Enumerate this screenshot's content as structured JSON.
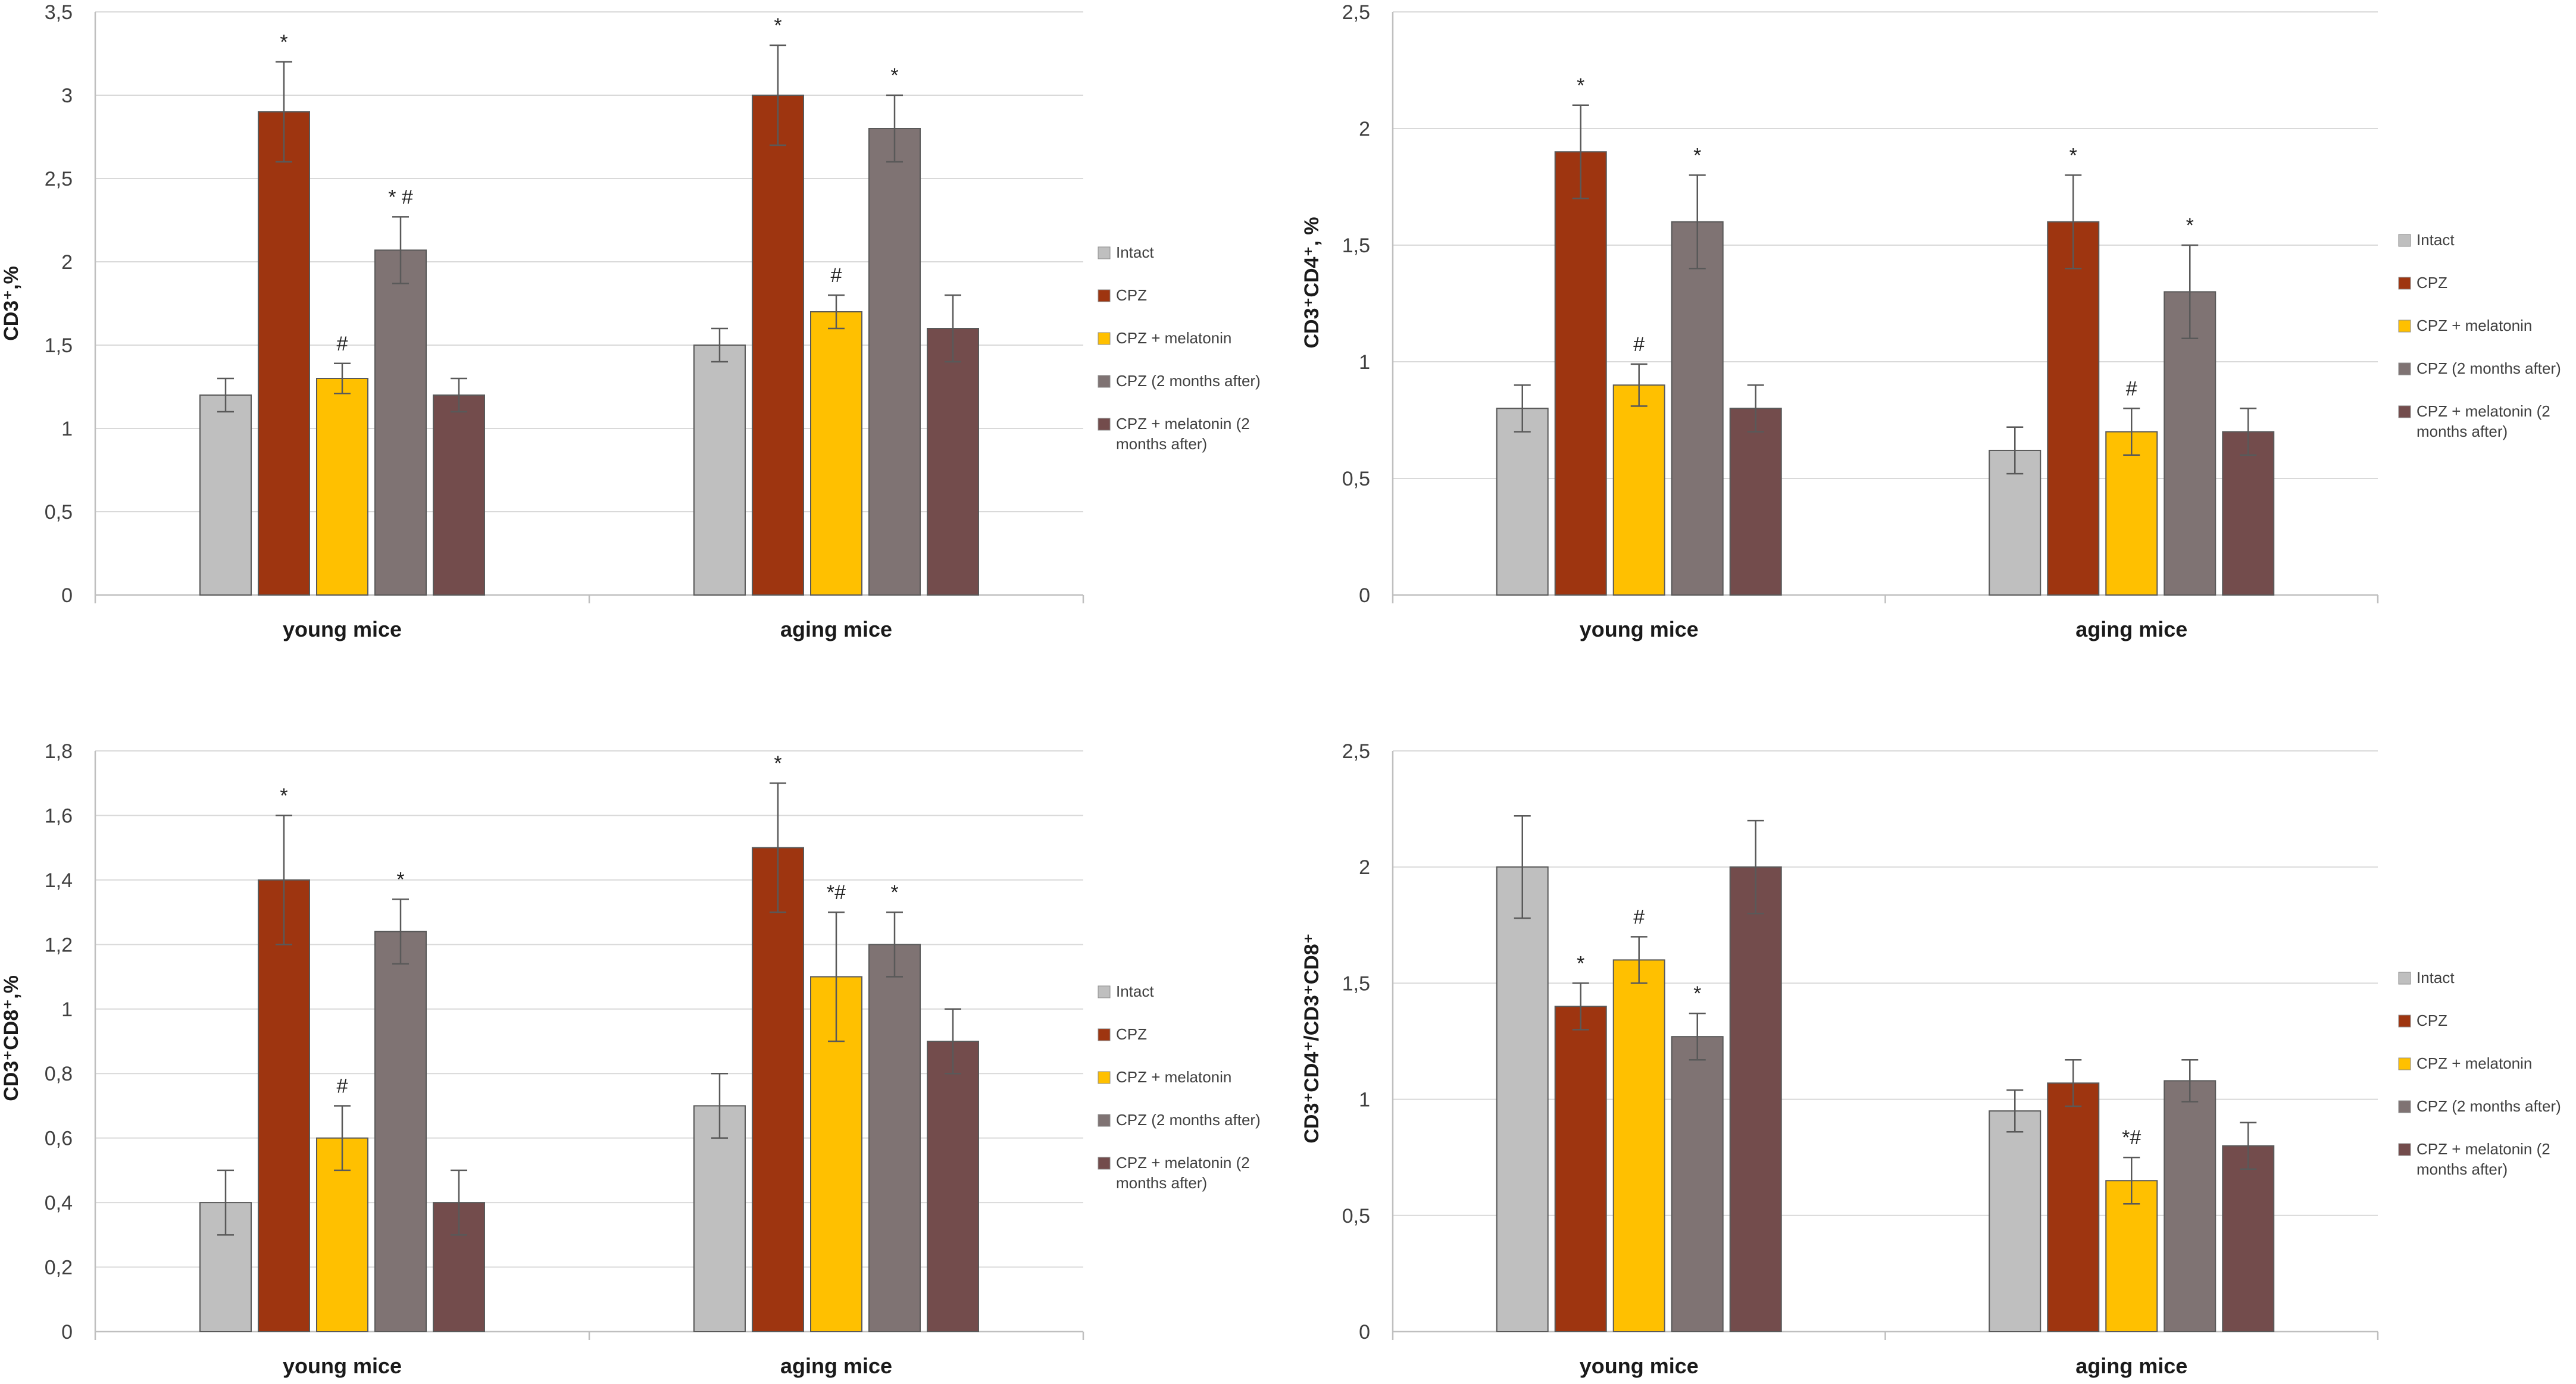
{
  "chart_data": [
    {
      "type": "bar",
      "title": "",
      "xlabel": "",
      "ylabel": "CD3⁺,%",
      "ylim": [
        0,
        3.5
      ],
      "yticks": [
        "0",
        "0,5",
        "1",
        "1,5",
        "2",
        "2,5",
        "3",
        "3,5"
      ],
      "categories": [
        "young mice",
        "aging mice"
      ],
      "legend_position": "right",
      "series": [
        {
          "name": "Intact",
          "color": "#bfbfbf",
          "values": [
            1.2,
            1.5
          ],
          "errors": [
            0.1,
            0.1
          ],
          "labels": [
            "",
            ""
          ]
        },
        {
          "name": "CPZ",
          "color": "#9e3510",
          "values": [
            2.9,
            3.0
          ],
          "errors": [
            0.3,
            0.3
          ],
          "labels": [
            "*",
            "*"
          ]
        },
        {
          "name": "CPZ  + melatonin",
          "color": "#ffc000",
          "values": [
            1.3,
            1.7
          ],
          "errors": [
            0.09,
            0.1
          ],
          "labels": [
            "#",
            "#"
          ]
        },
        {
          "name": "CPZ (2 months after)",
          "color": "#7f7373",
          "values": [
            2.07,
            2.8
          ],
          "errors": [
            0.2,
            0.2
          ],
          "labels": [
            "* #",
            "*"
          ]
        },
        {
          "name": "CPZ + melatonin (2 months after)",
          "color": "#734c4c",
          "values": [
            1.2,
            1.6
          ],
          "errors": [
            0.1,
            0.2
          ],
          "labels": [
            "",
            ""
          ]
        }
      ]
    },
    {
      "type": "bar",
      "title": "",
      "xlabel": "",
      "ylabel": "CD3⁺CD4⁺, %",
      "ylim": [
        0,
        2.5
      ],
      "yticks": [
        "0",
        "0,5",
        "1",
        "1,5",
        "2",
        "2,5"
      ],
      "categories": [
        "young mice",
        "aging mice"
      ],
      "legend_position": "right",
      "series": [
        {
          "name": "Intact",
          "color": "#bfbfbf",
          "values": [
            0.8,
            0.62
          ],
          "errors": [
            0.1,
            0.1
          ],
          "labels": [
            "",
            ""
          ]
        },
        {
          "name": "CPZ",
          "color": "#9e3510",
          "values": [
            1.9,
            1.6
          ],
          "errors": [
            0.2,
            0.2
          ],
          "labels": [
            "*",
            "*"
          ]
        },
        {
          "name": "CPZ  + melatonin",
          "color": "#ffc000",
          "values": [
            0.9,
            0.7
          ],
          "errors": [
            0.09,
            0.1
          ],
          "labels": [
            "#",
            "#"
          ]
        },
        {
          "name": "CPZ (2 months after)",
          "color": "#7f7373",
          "values": [
            1.6,
            1.3
          ],
          "errors": [
            0.2,
            0.2
          ],
          "labels": [
            "*",
            "*"
          ]
        },
        {
          "name": "CPZ + melatonin (2 months after)",
          "color": "#734c4c",
          "values": [
            0.8,
            0.7
          ],
          "errors": [
            0.1,
            0.1
          ],
          "labels": [
            "",
            ""
          ]
        }
      ]
    },
    {
      "type": "bar",
      "title": "",
      "xlabel": "",
      "ylabel": "CD3⁺CD8⁺,%",
      "ylim": [
        0,
        1.8
      ],
      "yticks": [
        "0",
        "0,2",
        "0,4",
        "0,6",
        "0,8",
        "1",
        "1,2",
        "1,4",
        "1,6",
        "1,8"
      ],
      "categories": [
        "young mice",
        "aging mice"
      ],
      "legend_position": "right",
      "series": [
        {
          "name": "Intact",
          "color": "#bfbfbf",
          "values": [
            0.4,
            0.7
          ],
          "errors": [
            0.1,
            0.1
          ],
          "labels": [
            "",
            ""
          ]
        },
        {
          "name": "CPZ",
          "color": "#9e3510",
          "values": [
            1.4,
            1.5
          ],
          "errors": [
            0.2,
            0.2
          ],
          "labels": [
            "*",
            "*"
          ]
        },
        {
          "name": "CPZ  + melatonin",
          "color": "#ffc000",
          "values": [
            0.6,
            1.1
          ],
          "errors": [
            0.1,
            0.2
          ],
          "labels": [
            "#",
            "*#"
          ]
        },
        {
          "name": "CPZ (2 months after)",
          "color": "#7f7373",
          "values": [
            1.24,
            1.2
          ],
          "errors": [
            0.1,
            0.1
          ],
          "labels": [
            "*",
            "*"
          ]
        },
        {
          "name": "CPZ + melatonin (2 months after)",
          "color": "#734c4c",
          "values": [
            0.4,
            0.9
          ],
          "errors": [
            0.1,
            0.1
          ],
          "labels": [
            "",
            ""
          ]
        }
      ]
    },
    {
      "type": "bar",
      "title": "",
      "xlabel": "",
      "ylabel": "CD3⁺CD4⁺/CD3⁺CD8⁺",
      "ylim": [
        0,
        2.5
      ],
      "yticks": [
        "0",
        "0,5",
        "1",
        "1,5",
        "2",
        "2,5"
      ],
      "categories": [
        "young mice",
        "aging mice"
      ],
      "legend_position": "right",
      "series": [
        {
          "name": "Intact",
          "color": "#bfbfbf",
          "values": [
            2.0,
            0.95
          ],
          "errors": [
            0.22,
            0.09
          ],
          "labels": [
            "",
            ""
          ]
        },
        {
          "name": "CPZ",
          "color": "#9e3510",
          "values": [
            1.4,
            1.07
          ],
          "errors": [
            0.1,
            0.1
          ],
          "labels": [
            "*",
            ""
          ]
        },
        {
          "name": "CPZ  + melatonin",
          "color": "#ffc000",
          "values": [
            1.6,
            0.65
          ],
          "errors": [
            0.1,
            0.1
          ],
          "labels": [
            "#",
            "*#"
          ]
        },
        {
          "name": "CPZ (2 months after)",
          "color": "#7f7373",
          "values": [
            1.27,
            1.08
          ],
          "errors": [
            0.1,
            0.09
          ],
          "labels": [
            "*",
            ""
          ]
        },
        {
          "name": "CPZ + melatonin (2 months after)",
          "color": "#734c4c",
          "values": [
            2.0,
            0.8
          ],
          "errors": [
            0.2,
            0.1
          ],
          "labels": [
            "",
            ""
          ]
        }
      ]
    }
  ],
  "legend_wrap": {
    "CPZ + melatonin (2 months after)": [
      "CPZ + melatonin (2",
      "months after)"
    ]
  }
}
